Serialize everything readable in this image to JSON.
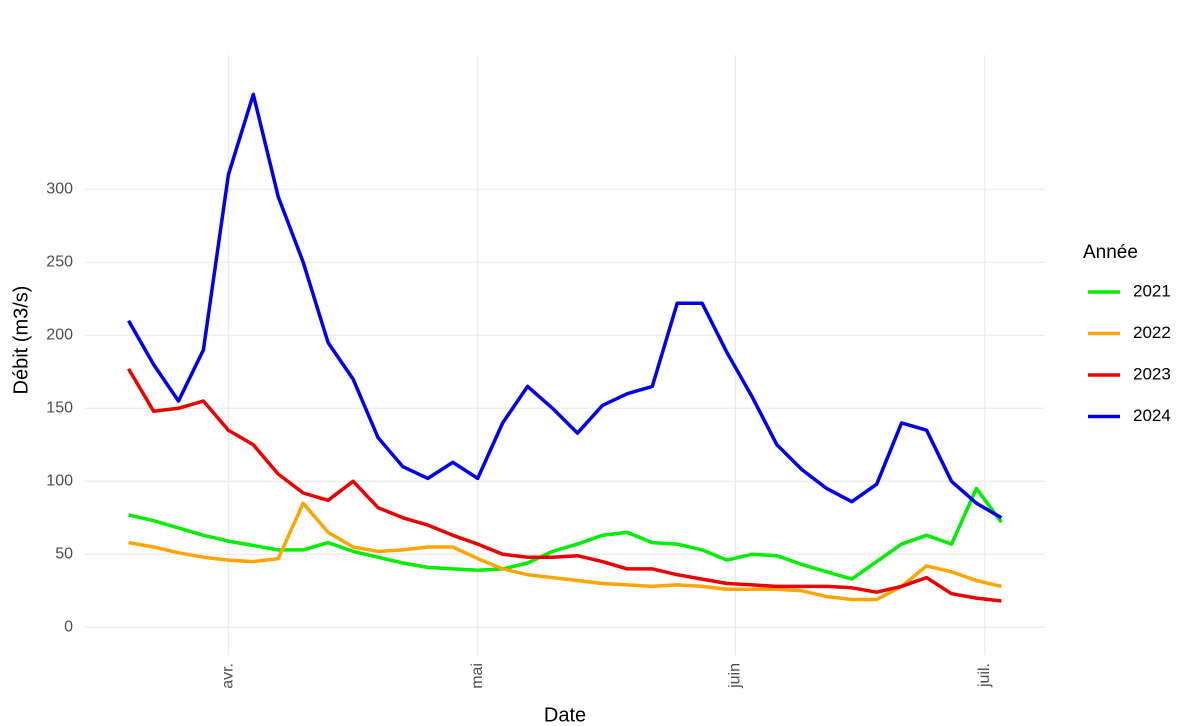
{
  "chart_data": {
    "type": "line",
    "x_label": "Date",
    "y_label": "Débit (m3/s)",
    "legend_title": "Année",
    "legend": "right",
    "grid": true,
    "x": [
      79,
      82,
      85,
      88,
      91,
      94,
      97,
      100,
      103,
      106,
      109,
      112,
      115,
      118,
      121,
      124,
      127,
      130,
      133,
      136,
      139,
      142,
      145,
      148,
      151,
      154,
      157,
      160,
      163,
      166,
      169,
      172,
      175,
      178,
      181,
      184
    ],
    "xlim": [
      73.75,
      189.25
    ],
    "xticks": [
      {
        "value": 91,
        "label": "avr."
      },
      {
        "value": 121,
        "label": "mai"
      },
      {
        "value": 152,
        "label": "juin"
      },
      {
        "value": 182,
        "label": "juil."
      }
    ],
    "ylim": [
      -19,
      392
    ],
    "yticks": [
      0,
      50,
      100,
      150,
      200,
      250,
      300
    ],
    "series": [
      {
        "name": "2021",
        "color": "#00ee00",
        "values": [
          77,
          73,
          68,
          63,
          59,
          56,
          53,
          53,
          58,
          52,
          48,
          44,
          41,
          40,
          39,
          40,
          44,
          52,
          57,
          63,
          65,
          58,
          57,
          53,
          46,
          50,
          49,
          43,
          38,
          33,
          45,
          57,
          63,
          57,
          95,
          72
        ]
      },
      {
        "name": "2022",
        "color": "#ffa500",
        "values": [
          58,
          55,
          51,
          48,
          46,
          45,
          47,
          85,
          65,
          55,
          52,
          53,
          55,
          55,
          47,
          40,
          36,
          34,
          32,
          30,
          29,
          28,
          29,
          28,
          26,
          26,
          26,
          25,
          21,
          19,
          19,
          28,
          42,
          38,
          32,
          28
        ]
      },
      {
        "name": "2023",
        "color": "#ee0000",
        "values": [
          177,
          148,
          150,
          155,
          135,
          125,
          105,
          92,
          87,
          100,
          82,
          75,
          70,
          63,
          57,
          50,
          48,
          48,
          49,
          45,
          40,
          40,
          36,
          33,
          30,
          29,
          28,
          28,
          28,
          27,
          24,
          28,
          34,
          23,
          20,
          18
        ]
      },
      {
        "name": "2024",
        "color": "#0000ee",
        "values": [
          210,
          180,
          155,
          190,
          310,
          365,
          295,
          250,
          195,
          170,
          130,
          110,
          102,
          113,
          102,
          140,
          165,
          150,
          133,
          152,
          160,
          165,
          222,
          222,
          188,
          158,
          125,
          108,
          95,
          86,
          98,
          140,
          135,
          100,
          85,
          75
        ]
      }
    ]
  }
}
